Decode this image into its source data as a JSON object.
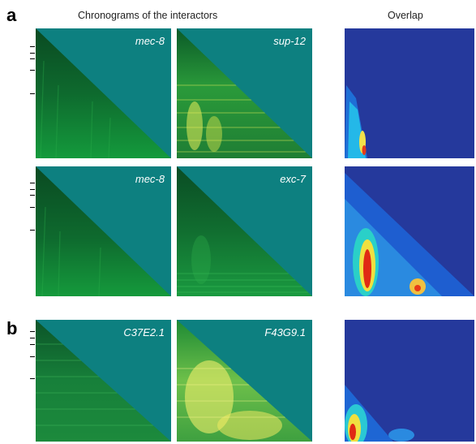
{
  "figure": {
    "header_left": "Chronograms of the interactors",
    "header_right": "Overlap",
    "panels": [
      {
        "letter": "a",
        "rows": [
          {
            "gene_left": "mec-8",
            "gene_right": "sup-12"
          },
          {
            "gene_left": "mec-8",
            "gene_right": "exc-7"
          }
        ]
      },
      {
        "letter": "b",
        "rows": [
          {
            "gene_left": "C37E2.1",
            "gene_right": "F43G9.1"
          }
        ]
      }
    ]
  },
  "colors": {
    "teal_background": "#0d8080",
    "chronogram_dark": "#0b5a28",
    "chronogram_bright": "#f3f060",
    "overlap_background": "#25399c",
    "overlap_hot": "#d81010"
  }
}
